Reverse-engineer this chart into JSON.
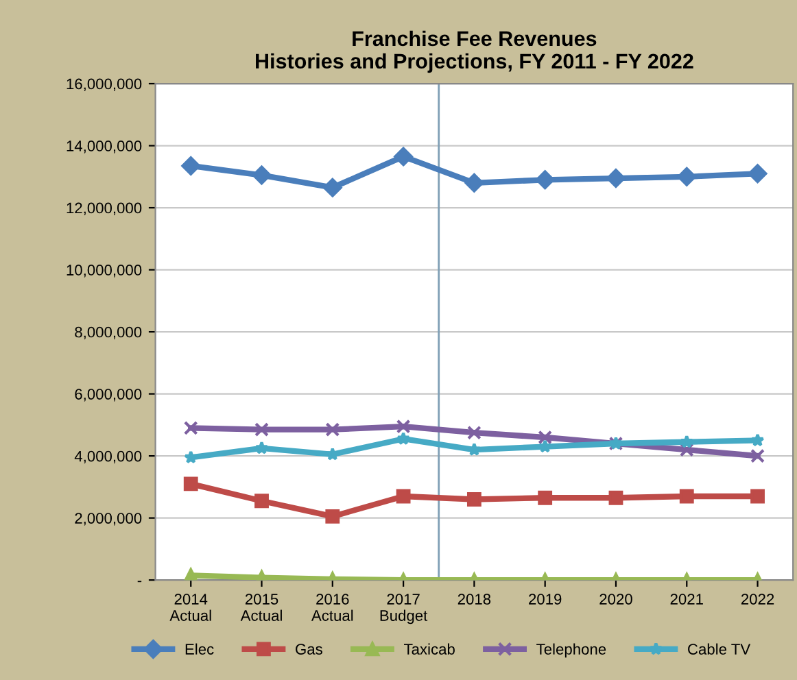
{
  "chart_data": {
    "type": "line",
    "title": "Franchise Fee Revenues\nHistories and Projections, FY 2011 - FY 2022",
    "x": [
      2014,
      2015,
      2016,
      2017,
      2018,
      2019,
      2020,
      2021,
      2022
    ],
    "xlim": [
      2013.5,
      2022.5
    ],
    "xticks": [
      {
        "value": 2014,
        "label": "2014\nActual"
      },
      {
        "value": 2015,
        "label": "2015\nActual"
      },
      {
        "value": 2016,
        "label": "2016\nActual"
      },
      {
        "value": 2017,
        "label": "2017\nBudget"
      },
      2018,
      2019,
      2020,
      2021,
      2022
    ],
    "series": [
      {
        "name": "Elec",
        "color": "#4a7ebb",
        "marker": "diamond",
        "values": [
          13350000,
          13050000,
          12650000,
          13650000,
          12800000,
          12900000,
          12950000,
          13000000,
          13100000
        ]
      },
      {
        "name": "Gas",
        "color": "#be4b48",
        "marker": "square",
        "values": [
          3100000,
          2550000,
          2050000,
          2700000,
          2600000,
          2650000,
          2650000,
          2700000,
          2700000
        ]
      },
      {
        "name": "Taxicab",
        "color": "#98b954",
        "marker": "triangle",
        "values": [
          150000,
          80000,
          30000,
          0,
          0,
          0,
          0,
          0,
          0
        ]
      },
      {
        "name": "Telephone",
        "color": "#7d60a0",
        "marker": "cross",
        "values": [
          4900000,
          4850000,
          4850000,
          4950000,
          4750000,
          4600000,
          4400000,
          4200000,
          4000000
        ]
      },
      {
        "name": "Cable TV",
        "color": "#46aac5",
        "marker": "star",
        "values": [
          3950000,
          4250000,
          4050000,
          4550000,
          4200000,
          4300000,
          4400000,
          4450000,
          4500000
        ]
      }
    ],
    "ylim": [
      0,
      16000000
    ],
    "yticks": [
      {
        "value": 0,
        "label": "-"
      },
      {
        "value": 2000000,
        "label": "2,000,000"
      },
      {
        "value": 4000000,
        "label": "4,000,000"
      },
      {
        "value": 6000000,
        "label": "6,000,000"
      },
      {
        "value": 8000000,
        "label": "8,000,000"
      },
      {
        "value": 10000000,
        "label": "10,000,000"
      },
      {
        "value": 12000000,
        "label": "12,000,000"
      },
      {
        "value": 14000000,
        "label": "14,000,000"
      },
      {
        "value": 16000000,
        "label": "16,000,000"
      }
    ],
    "ref_lines": [
      {
        "axis": "x",
        "value": 2017.5,
        "color": "#7f9fb5",
        "line_style": "solid"
      }
    ],
    "grid": "y",
    "legend": "bottom",
    "line_style": "solid"
  }
}
